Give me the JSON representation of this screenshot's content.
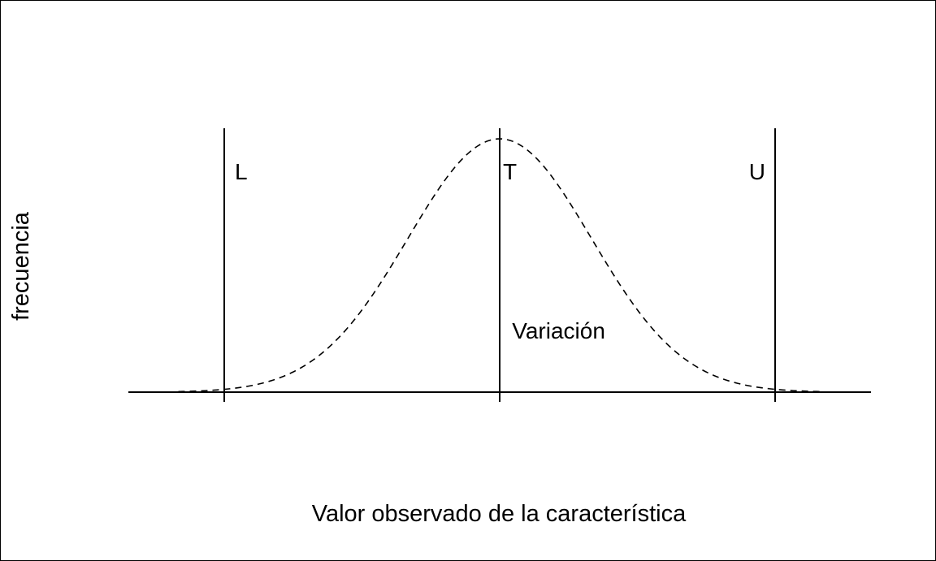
{
  "chart_data": {
    "type": "line",
    "title": "",
    "xlabel": "Valor observado de la característica",
    "ylabel": "frecuencia",
    "grid": false,
    "legend": "none",
    "line_color": "#000000",
    "series": [
      {
        "style": "dashed",
        "distribution": "normal",
        "mean": 0,
        "sd": 1
      }
    ],
    "xlim": [
      -3.5,
      3.5
    ],
    "reference_lines": [
      {
        "label": "L",
        "x": -3
      },
      {
        "label": "T",
        "x": 0
      },
      {
        "label": "U",
        "x": 3
      }
    ],
    "annotations": [
      {
        "text": "Variación",
        "x": 0.25,
        "y": 0.24
      }
    ]
  }
}
